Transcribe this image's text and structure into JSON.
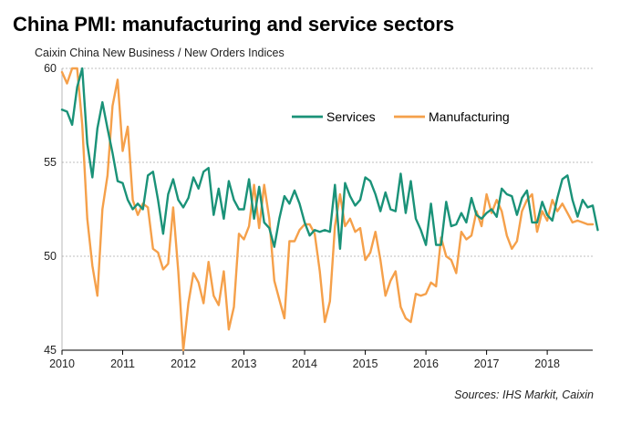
{
  "header": {
    "title": "China PMI: manufacturing and service sectors",
    "subtitle": "Caixin China New Business / New Orders Indices"
  },
  "footer": {
    "source": "Sources: IHS Markit, Caixin"
  },
  "colors": {
    "services": "#1a9278",
    "manufacturing": "#f5a04a",
    "grid": "#bfbfbf",
    "axis": "#000000"
  },
  "chart_data": {
    "type": "line",
    "title": "China PMI: manufacturing and service sectors",
    "subtitle": "Caixin China New Business / New Orders Indices",
    "xlabel": "",
    "ylabel": "",
    "xlim": [
      2010.0,
      2018.75
    ],
    "ylim": [
      45,
      60
    ],
    "yticks": [
      45,
      50,
      55,
      60
    ],
    "xticks": [
      2010,
      2011,
      2012,
      2013,
      2014,
      2015,
      2016,
      2017,
      2018
    ],
    "xtick_labels": [
      "2010",
      "2011",
      "2012",
      "2013",
      "2014",
      "2015",
      "2016",
      "2017",
      "2018"
    ],
    "ytick_labels": [
      "45",
      "50",
      "55",
      "60"
    ],
    "grid": "horizontal dotted",
    "legend": "top-center",
    "x_start": "2010-01",
    "x_frequency": "monthly",
    "series": [
      {
        "name": "Services",
        "color": "#1a9278",
        "values": [
          57.8,
          57.7,
          57.0,
          59.0,
          60.2,
          56.0,
          54.2,
          56.8,
          58.2,
          56.8,
          55.5,
          54.0,
          53.9,
          53.0,
          52.5,
          52.8,
          52.5,
          54.3,
          54.5,
          53.0,
          51.2,
          53.3,
          54.1,
          53.0,
          52.6,
          53.1,
          54.2,
          53.6,
          54.5,
          54.7,
          52.2,
          53.6,
          52.0,
          54.0,
          53.0,
          52.5,
          52.5,
          54.1,
          52.0,
          53.7,
          51.8,
          51.5,
          50.5,
          52.0,
          53.2,
          52.8,
          53.5,
          52.8,
          51.8,
          51.1,
          51.4,
          51.3,
          51.4,
          51.3,
          53.8,
          50.4,
          53.9,
          53.2,
          52.7,
          53.0,
          54.2,
          54.0,
          53.3,
          52.4,
          53.4,
          52.5,
          52.4,
          54.4,
          52.3,
          54.0,
          52.0,
          51.4,
          50.6,
          52.8,
          50.6,
          50.6,
          52.9,
          51.6,
          51.7,
          52.3,
          51.8,
          53.1,
          52.2,
          52.0,
          52.3,
          52.5,
          52.1,
          53.6,
          53.3,
          53.2,
          52.2,
          53.1,
          53.5,
          51.8,
          51.8,
          52.9,
          52.2,
          51.9,
          53.1,
          54.1,
          54.3,
          53.0,
          52.1,
          53.0,
          52.6,
          52.7,
          51.4
        ]
      },
      {
        "name": "Manufacturing",
        "color": "#f5a04a",
        "values": [
          59.8,
          59.2,
          60.2,
          60.0,
          57.0,
          52.0,
          49.5,
          47.9,
          52.5,
          54.3,
          58.0,
          59.4,
          55.6,
          56.9,
          53.0,
          52.2,
          52.8,
          52.6,
          50.4,
          50.2,
          49.3,
          49.6,
          52.6,
          49.2,
          44.9,
          47.5,
          49.1,
          48.6,
          47.5,
          49.7,
          47.9,
          47.4,
          49.2,
          46.1,
          47.3,
          51.2,
          50.9,
          51.6,
          53.8,
          51.5,
          53.8,
          52.0,
          48.7,
          47.7,
          46.7,
          50.8,
          50.8,
          51.4,
          51.7,
          51.7,
          51.2,
          49.2,
          46.5,
          47.6,
          51.6,
          53.3,
          51.6,
          52.0,
          51.3,
          51.5,
          49.8,
          50.2,
          51.3,
          49.8,
          47.9,
          48.7,
          49.2,
          47.3,
          46.7,
          46.5,
          48.0,
          47.9,
          48.0,
          48.6,
          48.4,
          51.0,
          50.0,
          49.8,
          49.1,
          51.3,
          50.9,
          51.1,
          52.4,
          51.6,
          53.3,
          52.3,
          53.0,
          52.4,
          51.1,
          50.4,
          50.8,
          52.4,
          53.0,
          53.3,
          51.3,
          52.4,
          51.9,
          53.0,
          52.4,
          52.8,
          52.3,
          51.8,
          51.9,
          51.8,
          51.7,
          51.7
        ]
      }
    ]
  }
}
